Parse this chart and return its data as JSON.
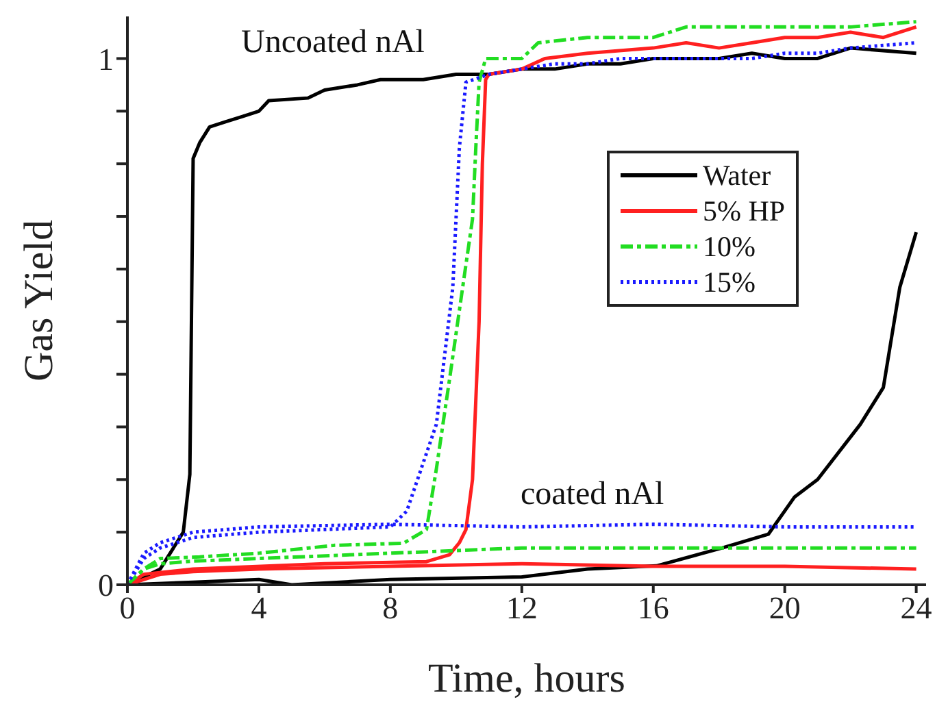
{
  "chart_data": {
    "type": "line",
    "xlabel": "Time, hours",
    "ylabel": "Gas Yield",
    "xlim": [
      0,
      24.3
    ],
    "xticks": [
      0,
      4,
      8,
      12,
      16,
      20,
      24
    ],
    "ylim": [
      0,
      1.08
    ],
    "yticks": [
      0,
      {
        "value": 0.1,
        "label": null
      },
      {
        "value": 0.2,
        "label": null
      },
      {
        "value": 0.3,
        "label": null
      },
      {
        "value": 0.4,
        "label": null
      },
      {
        "value": 0.5,
        "label": null
      },
      {
        "value": 0.6,
        "label": null
      },
      {
        "value": 0.7,
        "label": null
      },
      {
        "value": 0.8,
        "label": null
      },
      {
        "value": 0.9,
        "label": null
      },
      1
    ],
    "grid": false,
    "legend": "right",
    "marker": "none",
    "annotations": [
      "Uncoated nAl",
      "coated nAl"
    ],
    "series": [
      {
        "name": "Water",
        "color": "#000000",
        "line_style": "solid",
        "x": [
          0,
          1,
          1.7,
          1.9,
          2.0,
          2.2,
          2.5,
          3,
          3.5,
          4,
          4.3,
          5.5,
          6,
          7,
          7.7,
          9,
          10,
          11,
          12,
          13,
          14,
          15,
          16,
          17,
          18,
          19,
          20,
          21,
          22,
          24
        ],
        "values": [
          0,
          0.03,
          0.1,
          0.21,
          0.81,
          0.84,
          0.87,
          0.88,
          0.89,
          0.9,
          0.92,
          0.925,
          0.94,
          0.95,
          0.96,
          0.96,
          0.97,
          0.97,
          0.98,
          0.98,
          0.99,
          0.99,
          1.0,
          1.0,
          1.0,
          1.01,
          1.0,
          1.0,
          1.02,
          1.01
        ]
      },
      {
        "name": "5% HP",
        "color": "#ff2020",
        "line_style": "solid",
        "x": [
          0,
          0.5,
          2,
          6,
          9.1,
          9.8,
          10.1,
          10.3,
          10.5,
          10.7,
          10.8,
          10.9,
          11,
          12,
          12.7,
          14,
          16,
          17,
          18,
          19,
          20,
          21,
          22,
          23,
          24
        ],
        "values": [
          0,
          0.02,
          0.03,
          0.04,
          0.044,
          0.057,
          0.08,
          0.105,
          0.2,
          0.5,
          0.8,
          0.96,
          0.97,
          0.98,
          1.0,
          1.01,
          1.02,
          1.03,
          1.02,
          1.03,
          1.04,
          1.04,
          1.05,
          1.04,
          1.06
        ]
      },
      {
        "name": "10%",
        "color": "#22dd22",
        "line_style": "dashed",
        "x": [
          0,
          0.5,
          1,
          2.2,
          4,
          6.3,
          8.4,
          9.1,
          9.4,
          9.8,
          10.2,
          10.5,
          10.6,
          10.7,
          10.9,
          12,
          12.5,
          14,
          16,
          17,
          18,
          20,
          22,
          24
        ],
        "values": [
          0,
          0.03,
          0.05,
          0.053,
          0.06,
          0.075,
          0.079,
          0.105,
          0.22,
          0.39,
          0.565,
          0.695,
          0.83,
          0.955,
          1.0,
          1.0,
          1.03,
          1.04,
          1.04,
          1.06,
          1.06,
          1.06,
          1.06,
          1.07
        ]
      },
      {
        "name": "15%",
        "color": "#1a1aff",
        "line_style": "dotted",
        "x": [
          0,
          0.5,
          1,
          2,
          4,
          6,
          8,
          8.5,
          9.4,
          9.9,
          10.1,
          10.3,
          11,
          12,
          13,
          14,
          15,
          16,
          17,
          18,
          19,
          20,
          21,
          22,
          24
        ],
        "values": [
          0,
          0.05,
          0.07,
          0.09,
          0.1,
          0.105,
          0.11,
          0.14,
          0.305,
          0.565,
          0.83,
          0.955,
          0.97,
          0.98,
          0.99,
          0.99,
          1.0,
          1.0,
          1.0,
          1.0,
          1.0,
          1.01,
          1.01,
          1.02,
          1.03
        ]
      },
      {
        "color": "#000000",
        "line_style": "solid",
        "x": [
          0,
          2,
          4,
          5,
          8,
          12,
          14,
          16.1,
          18.1,
          19.5,
          20.3,
          21,
          22.3,
          23,
          23.5,
          24
        ],
        "values": [
          0,
          0.005,
          0.01,
          0,
          0.01,
          0.015,
          0.03,
          0.036,
          0.07,
          0.096,
          0.167,
          0.2,
          0.305,
          0.375,
          0.565,
          0.67
        ]
      },
      {
        "color": "#ff2020",
        "line_style": "solid",
        "x": [
          0,
          1,
          2,
          4,
          8,
          12,
          16,
          20,
          24
        ],
        "values": [
          0,
          0.02,
          0.025,
          0.03,
          0.035,
          0.04,
          0.035,
          0.035,
          0.03
        ]
      },
      {
        "color": "#22dd22",
        "line_style": "dashed",
        "x": [
          0,
          0.5,
          1,
          2,
          4,
          8,
          12,
          16,
          20,
          24
        ],
        "values": [
          0,
          0.03,
          0.04,
          0.045,
          0.05,
          0.06,
          0.07,
          0.07,
          0.07,
          0.07
        ]
      },
      {
        "color": "#1a1aff",
        "line_style": "dotted",
        "x": [
          0,
          0.5,
          1,
          2,
          4,
          8,
          12,
          16,
          20,
          24
        ],
        "values": [
          0,
          0.06,
          0.08,
          0.1,
          0.11,
          0.115,
          0.11,
          0.115,
          0.11,
          0.11
        ]
      }
    ]
  }
}
